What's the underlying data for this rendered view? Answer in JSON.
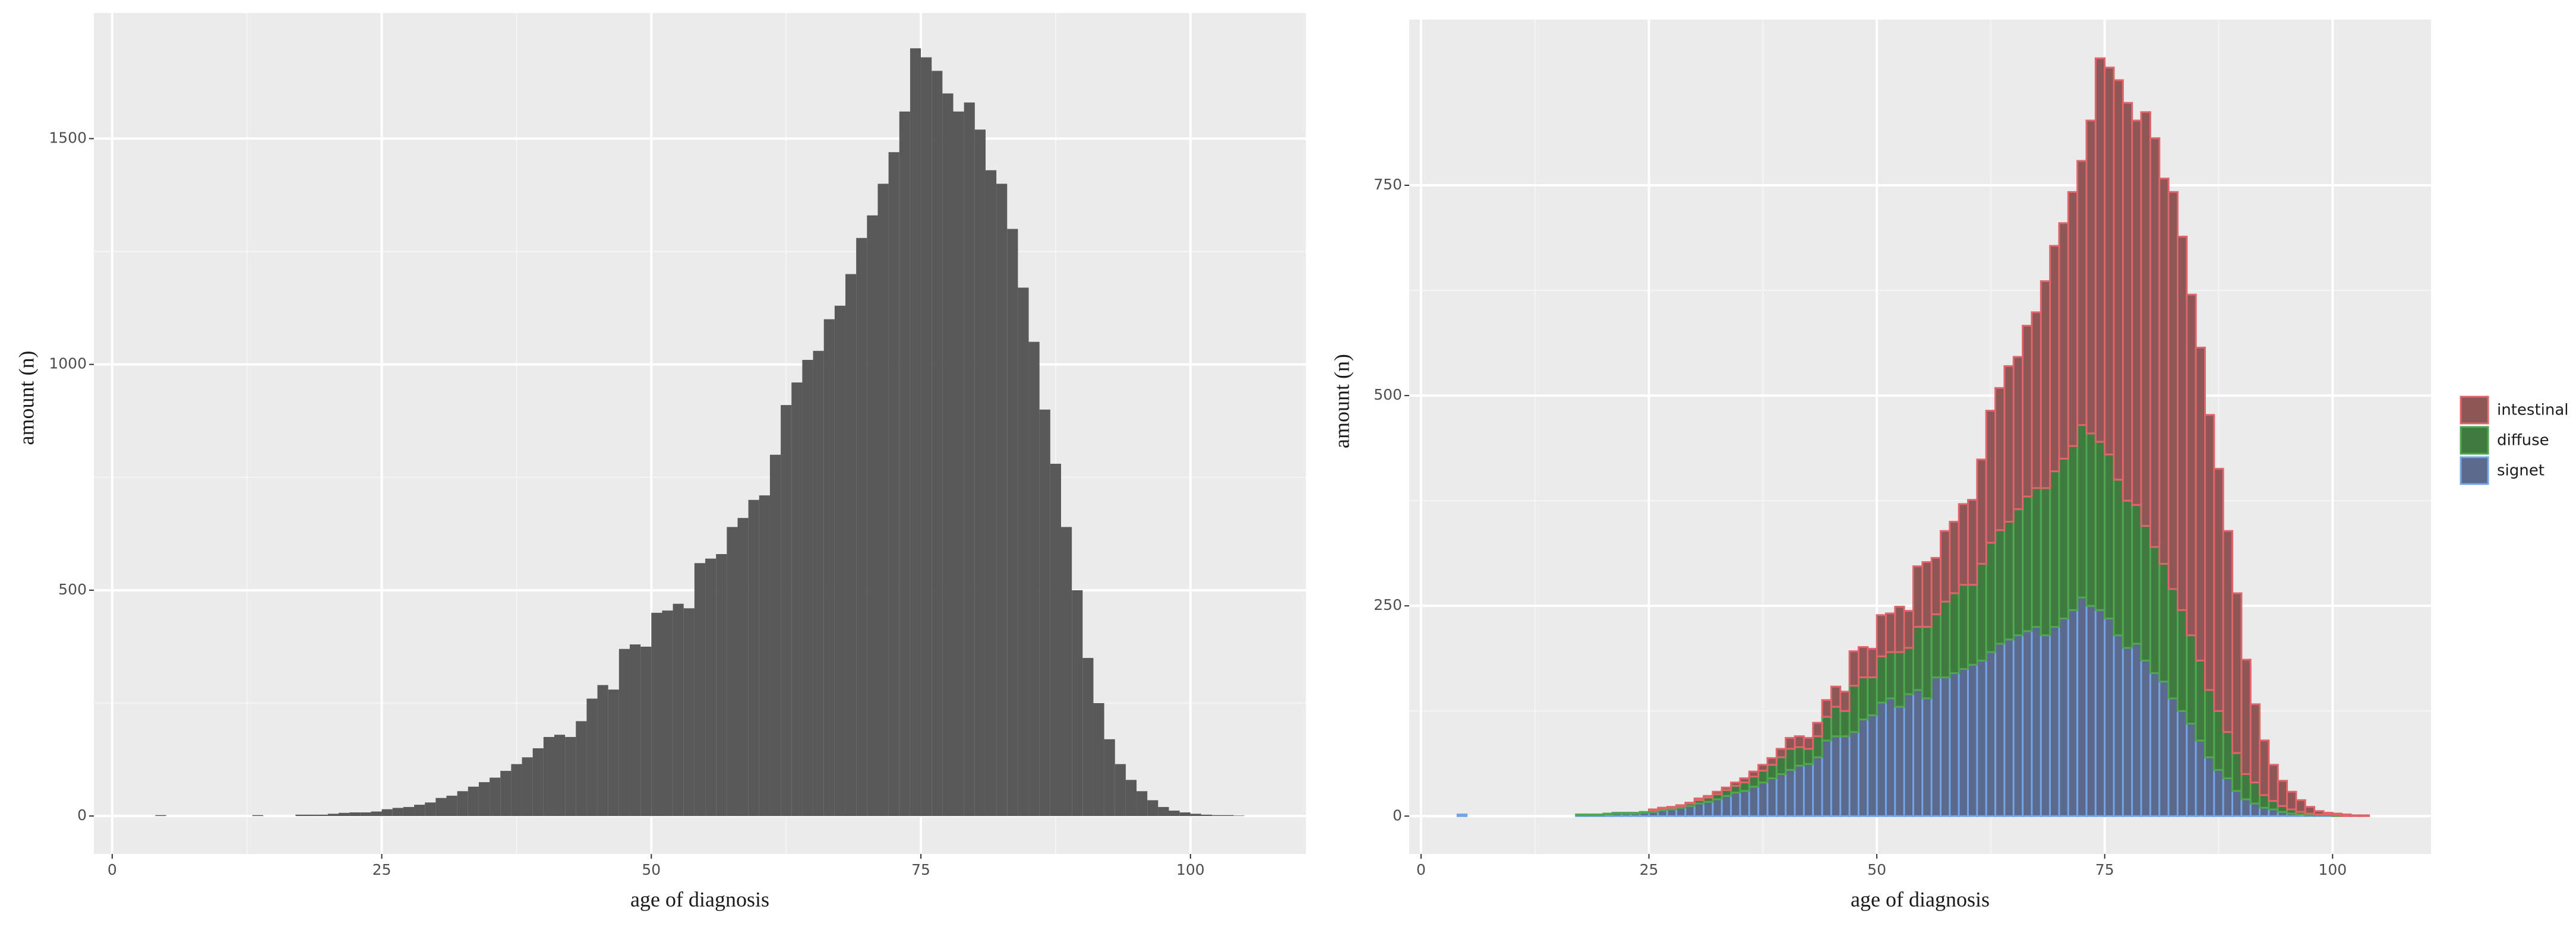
{
  "chart_data": [
    {
      "type": "histogram",
      "x_label": "age of diagnosis",
      "y_label": "amount (n)",
      "bins": [
        0,
        1,
        2,
        3,
        4,
        5,
        6,
        7,
        8,
        9,
        10,
        11,
        12,
        13,
        14,
        15,
        16,
        17,
        18,
        19,
        20,
        21,
        22,
        23,
        24,
        25,
        26,
        27,
        28,
        29,
        30,
        31,
        32,
        33,
        34,
        35,
        36,
        37,
        38,
        39,
        40,
        41,
        42,
        43,
        44,
        45,
        46,
        47,
        48,
        49,
        50,
        51,
        52,
        53,
        54,
        55,
        56,
        57,
        58,
        59,
        60,
        61,
        62,
        63,
        64,
        65,
        66,
        67,
        68,
        69,
        70,
        71,
        72,
        73,
        74,
        75,
        76,
        77,
        78,
        79,
        80,
        81,
        82,
        83,
        84,
        85,
        86,
        87,
        88,
        89,
        90,
        91,
        92,
        93,
        94,
        95,
        96,
        97,
        98,
        99,
        100,
        101,
        102,
        103,
        104,
        105
      ],
      "values": [
        0,
        0,
        0,
        0,
        2,
        0,
        0,
        0,
        0,
        0,
        0,
        0,
        0,
        2,
        0,
        0,
        0,
        3,
        3,
        3,
        5,
        7,
        8,
        8,
        10,
        15,
        18,
        20,
        25,
        30,
        40,
        45,
        55,
        65,
        75,
        85,
        100,
        115,
        130,
        150,
        175,
        180,
        175,
        210,
        260,
        290,
        280,
        370,
        380,
        375,
        450,
        455,
        470,
        460,
        560,
        570,
        580,
        640,
        660,
        700,
        710,
        800,
        910,
        960,
        1010,
        1030,
        1100,
        1130,
        1200,
        1280,
        1330,
        1400,
        1470,
        1560,
        1700,
        1680,
        1650,
        1600,
        1560,
        1580,
        1520,
        1430,
        1400,
        1300,
        1170,
        1050,
        900,
        780,
        640,
        500,
        350,
        250,
        170,
        115,
        80,
        55,
        35,
        20,
        12,
        8,
        5,
        3,
        2,
        2,
        1
      ],
      "color": "#595959",
      "xlim": [
        -1.7,
        110.7
      ],
      "ylim": [
        -84,
        1778
      ],
      "xticks": [
        0,
        25,
        50,
        75,
        100
      ],
      "yticks": [
        0,
        500,
        1000,
        1500
      ],
      "grid": true
    },
    {
      "type": "histogram",
      "x_label": "age of diagnosis",
      "y_label": "amount (n)",
      "stacked": true,
      "legend": "right",
      "bins": [
        0,
        1,
        2,
        3,
        4,
        5,
        6,
        7,
        8,
        9,
        10,
        11,
        12,
        13,
        14,
        15,
        16,
        17,
        18,
        19,
        20,
        21,
        22,
        23,
        24,
        25,
        26,
        27,
        28,
        29,
        30,
        31,
        32,
        33,
        34,
        35,
        36,
        37,
        38,
        39,
        40,
        41,
        42,
        43,
        44,
        45,
        46,
        47,
        48,
        49,
        50,
        51,
        52,
        53,
        54,
        55,
        56,
        57,
        58,
        59,
        60,
        61,
        62,
        63,
        64,
        65,
        66,
        67,
        68,
        69,
        70,
        71,
        72,
        73,
        74,
        75,
        76,
        77,
        78,
        79,
        80,
        81,
        82,
        83,
        84,
        85,
        86,
        87,
        88,
        89,
        90,
        91,
        92,
        93,
        94,
        95,
        96,
        97,
        98,
        99,
        100,
        101,
        102,
        103,
        104,
        105
      ],
      "series": [
        {
          "name": "intestinal",
          "color": "#8e5656",
          "outline": "#e0656a",
          "values": [
            0,
            0,
            0,
            0,
            0,
            0,
            0,
            0,
            0,
            0,
            0,
            0,
            0,
            0,
            0,
            0,
            0,
            0,
            0,
            0,
            0,
            0,
            0,
            0,
            0,
            1,
            1,
            1,
            1,
            1,
            2,
            2,
            3,
            3,
            4,
            5,
            6,
            7,
            8,
            10,
            13,
            13,
            13,
            16,
            20,
            24,
            23,
            41,
            36,
            34,
            49,
            46,
            54,
            44,
            72,
            77,
            67,
            84,
            85,
            96,
            101,
            124,
            157,
            169,
            185,
            181,
            203,
            209,
            246,
            268,
            280,
            302,
            314,
            372,
            456,
            460,
            475,
            473,
            457,
            492,
            486,
            458,
            472,
            444,
            405,
            372,
            327,
            288,
            239,
            190,
            136,
            93,
            65,
            43,
            30,
            21,
            14,
            8,
            4,
            2,
            2,
            2,
            1,
            1,
            0
          ]
        },
        {
          "name": "diffuse",
          "color": "#3f7a3f",
          "outline": "#4fa84f",
          "values": [
            0,
            0,
            0,
            0,
            0,
            0,
            0,
            0,
            0,
            0,
            0,
            0,
            0,
            0,
            0,
            0,
            0,
            1,
            1,
            1,
            1,
            1,
            1,
            1,
            1,
            2,
            2,
            2,
            2,
            3,
            4,
            5,
            6,
            7,
            8,
            10,
            12,
            14,
            16,
            20,
            25,
            22,
            18,
            25,
            28,
            35,
            30,
            55,
            50,
            45,
            55,
            55,
            65,
            55,
            75,
            85,
            75,
            90,
            95,
            100,
            95,
            115,
            130,
            135,
            140,
            150,
            160,
            165,
            175,
            185,
            190,
            195,
            205,
            205,
            200,
            195,
            185,
            175,
            165,
            160,
            150,
            140,
            130,
            120,
            105,
            95,
            80,
            70,
            55,
            45,
            30,
            25,
            15,
            10,
            7,
            5,
            3,
            2,
            1,
            1,
            1,
            0,
            0,
            0,
            0
          ]
        },
        {
          "name": "signet",
          "color": "#5b6a8c",
          "outline": "#74a4e6",
          "values": [
            0,
            0,
            0,
            0,
            2,
            0,
            0,
            0,
            0,
            0,
            0,
            0,
            0,
            0,
            0,
            0,
            0,
            1,
            1,
            1,
            2,
            3,
            3,
            3,
            4,
            5,
            7,
            8,
            10,
            12,
            15,
            17,
            20,
            24,
            28,
            30,
            35,
            40,
            45,
            50,
            55,
            60,
            62,
            70,
            90,
            95,
            95,
            100,
            115,
            120,
            135,
            140,
            130,
            145,
            150,
            140,
            165,
            165,
            170,
            175,
            180,
            185,
            195,
            205,
            210,
            215,
            220,
            225,
            215,
            225,
            235,
            245,
            260,
            250,
            245,
            235,
            215,
            200,
            205,
            185,
            170,
            160,
            140,
            125,
            110,
            90,
            70,
            55,
            45,
            30,
            20,
            15,
            10,
            8,
            5,
            3,
            2,
            1,
            1,
            1,
            0,
            0,
            0,
            0,
            0
          ]
        }
      ],
      "xlim": [
        -1.3,
        110.8
      ],
      "ylim": [
        -45,
        947
      ],
      "xticks": [
        0,
        25,
        50,
        75,
        100
      ],
      "yticks": [
        0,
        250,
        500,
        750
      ],
      "grid": true
    }
  ]
}
